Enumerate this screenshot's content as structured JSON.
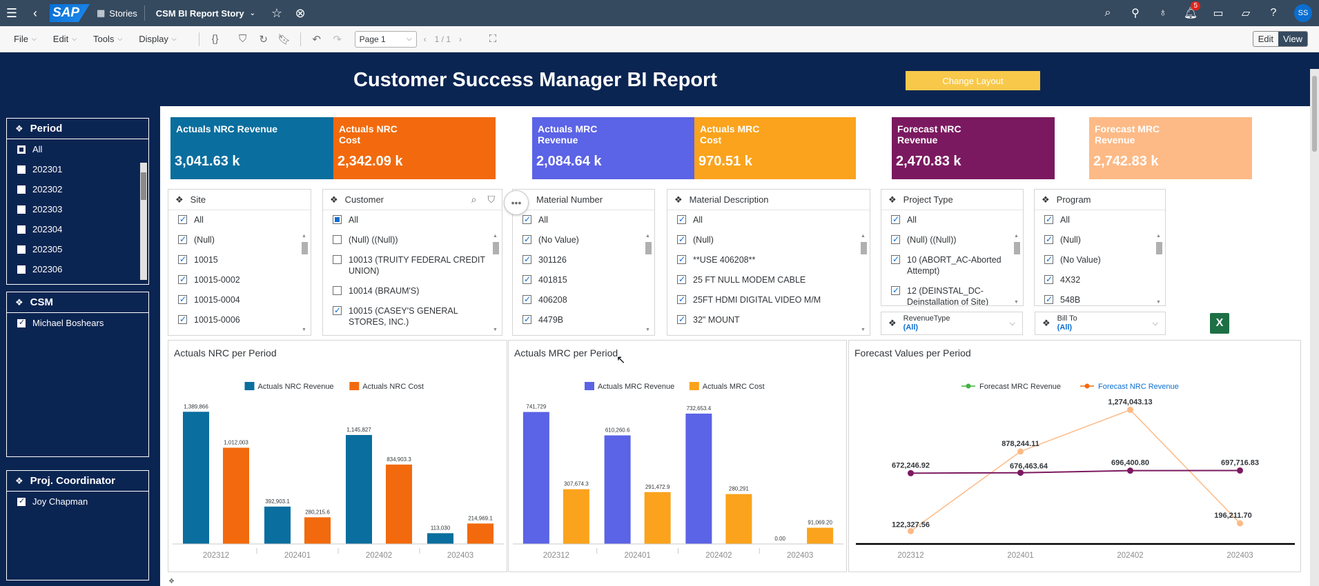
{
  "shell": {
    "stories_label": "Stories",
    "story_title": "CSM BI Report Story",
    "notification_count": "5",
    "avatar_initials": "SS"
  },
  "toolbar": {
    "menus": [
      "File",
      "Edit",
      "Tools",
      "Display"
    ],
    "page_select": "Page 1",
    "page_counter": "1 / 1",
    "edit_label": "Edit",
    "view_label": "View"
  },
  "report": {
    "title": "Customer Success Manager BI Report",
    "change_layout_label": "Change Layout"
  },
  "left_panels": {
    "period": {
      "title": "Period",
      "items": [
        "All",
        "202301",
        "202302",
        "202303",
        "202304",
        "202305",
        "202306"
      ]
    },
    "csm": {
      "title": "CSM",
      "items": [
        "Michael Boshears"
      ]
    },
    "coordinator": {
      "title": "Proj. Coordinator",
      "items": [
        "Joy Chapman"
      ]
    }
  },
  "kpis": [
    {
      "label": "Actuals NRC Revenue",
      "value": "3,041.63 k",
      "color": "#0a6e9e"
    },
    {
      "label": "Actuals NRC Cost",
      "value": "2,342.09 k",
      "color": "#f26a0d"
    },
    {
      "label": "Actuals MRC Revenue",
      "value": "2,084.64 k",
      "color": "#5b63e6"
    },
    {
      "label": "Actuals MRC Cost",
      "value": "970.51 k",
      "color": "#fba31c"
    },
    {
      "label": "Forecast NRC Revenue",
      "value": "2,470.83 k",
      "color": "#7b1960"
    },
    {
      "label": "Forecast MRC Revenue",
      "value": "2,742.83 k",
      "color": "#fdba86"
    }
  ],
  "filters": {
    "site": {
      "title": "Site",
      "items": [
        "All",
        "(Null)",
        "10015",
        "10015-0002",
        "10015-0004",
        "10015-0006"
      ]
    },
    "customer": {
      "title": "Customer",
      "items": [
        "All",
        "(Null) ((Null))",
        "10013 (TRUITY FEDERAL CREDIT UNION)",
        "10014 (BRAUM'S)",
        "10015 (CASEY'S GENERAL STORES, INC.)"
      ]
    },
    "material_number": {
      "title": "Material Number",
      "items": [
        "All",
        "(No Value)",
        "301126",
        "401815",
        "406208",
        "4479B"
      ]
    },
    "material_description": {
      "title": "Material Description",
      "items": [
        "All",
        "(Null)",
        "**USE 406208**",
        "25 FT NULL MODEM CABLE",
        "25FT HDMI DIGITAL VIDEO M/M",
        "32\" MOUNT"
      ]
    },
    "project_type": {
      "title": "Project Type",
      "items": [
        "All",
        "(Null) ((Null))",
        "10 (ABORT_AC-Aborted Attempt)",
        "12 (DEINSTAL_DC-Deinstallation of Site)"
      ]
    },
    "program": {
      "title": "Program",
      "items": [
        "All",
        "(Null)",
        "(No Value)",
        "4X32",
        "548B"
      ]
    }
  },
  "dropdowns": {
    "revenue_type": {
      "label": "RevenueType",
      "value": "(All)"
    },
    "bill_to": {
      "label": "Bill To",
      "value": "(All)"
    }
  },
  "chart_data": [
    {
      "type": "bar",
      "title": "Actuals NRC per Period",
      "categories": [
        "202312",
        "202401",
        "202402",
        "202403"
      ],
      "ylim": [
        0,
        1450000
      ],
      "series": [
        {
          "name": "Actuals NRC Revenue",
          "color": "#0a6e9e",
          "values": [
            1389866,
            392903.1,
            1145827,
            113030
          ],
          "labels": [
            "1,389,866",
            "392,903.1",
            "1,145,827",
            "113,030"
          ]
        },
        {
          "name": "Actuals NRC Cost",
          "color": "#f26a0d",
          "values": [
            1012003,
            280215.6,
            834903.3,
            214969.1
          ],
          "labels": [
            "1,012,003",
            "280,215.6",
            "834,903.3",
            "214,969.1"
          ]
        }
      ]
    },
    {
      "type": "bar",
      "title": "Actuals MRC per Period",
      "categories": [
        "202312",
        "202401",
        "202402",
        "202403"
      ],
      "ylim": [
        0,
        775000
      ],
      "series": [
        {
          "name": "Actuals MRC Revenue",
          "color": "#5b63e6",
          "values": [
            741729,
            610260.6,
            732653.4,
            0
          ],
          "labels": [
            "741,729",
            "610,260.6",
            "732,653.4",
            "0.00"
          ]
        },
        {
          "name": "Actuals MRC Cost",
          "color": "#fba31c",
          "values": [
            307674.3,
            291472.9,
            280291,
            91069.2
          ],
          "labels": [
            "307,674.3",
            "291,472.9",
            "280,291",
            "91,069.20"
          ]
        }
      ]
    },
    {
      "type": "line",
      "title": "Forecast Values per Period",
      "categories": [
        "202312",
        "202401",
        "202402",
        "202403"
      ],
      "ylim": [
        0,
        1310000
      ],
      "series": [
        {
          "name": "Forecast MRC Revenue",
          "color": "#7b1960",
          "marker_legend": "#3fb43f",
          "values": [
            672246.92,
            676463.64,
            696400.8,
            697716.83
          ],
          "labels": [
            "672,246.92",
            "676,463.64",
            "696,400.80",
            "697,716.83"
          ]
        },
        {
          "name": "Forecast NRC Revenue",
          "color": "#fdba86",
          "marker_legend": "#f26a0d",
          "values": [
            122327.56,
            878244.11,
            1274043.13,
            196211.7
          ],
          "labels": [
            "122,327.56",
            "878,244.11",
            "1,274,043.13",
            "196,211.70"
          ]
        }
      ]
    }
  ]
}
